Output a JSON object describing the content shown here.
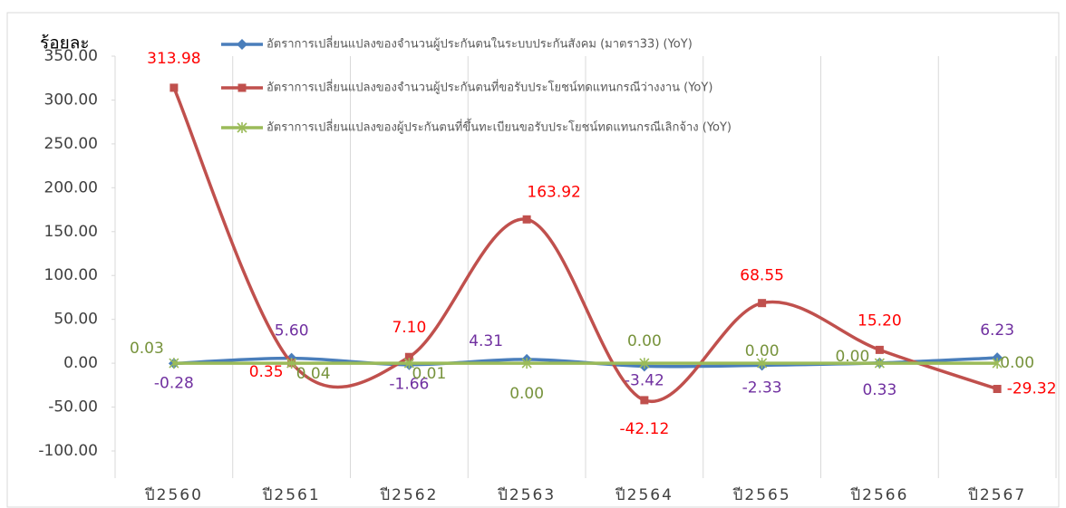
{
  "chart_data": {
    "type": "line",
    "y_label": "ร้อยละ",
    "categories": [
      "ปี2560",
      "ปี2561",
      "ปี2562",
      "ปี2563",
      "ปี2564",
      "ปี2565",
      "ปี2566",
      "ปี2567"
    ],
    "series": [
      {
        "name": "อัตราการเปลี่ยนแปลงของจำนวนผู้ประกันตนในระบบประกันสังคม (มาตรา33) (YoY)",
        "color": "#4a7ebb",
        "label_color": "#7030a0",
        "marker": "diamond",
        "values": [
          -0.28,
          5.6,
          -1.66,
          4.31,
          -3.42,
          -2.33,
          0.33,
          6.23
        ],
        "value_labels": [
          "-0.28",
          "5.60",
          "-1.66",
          "4.31",
          "-3.42",
          "-2.33",
          "0.33",
          "6.23"
        ]
      },
      {
        "name": "อัตราการเปลี่ยนแปลงของจำนวนผู้ประกันตนที่ขอรับประโยชน์ทดแทนกรณีว่างงาน (YoY)",
        "color": "#c0504d",
        "label_color": "#ff0000",
        "marker": "square",
        "values": [
          313.98,
          0.35,
          7.1,
          163.92,
          -42.12,
          68.55,
          15.2,
          -29.32
        ],
        "value_labels": [
          "313.98",
          "0.35",
          "7.10",
          "163.92",
          "-42.12",
          "68.55",
          "15.20",
          "-29.32"
        ]
      },
      {
        "name": "อัตราการเปลี่ยนแปลงของผู้ประกันตนที่ขึ้นทะเบียนขอรับประโยชน์ทดแทนกรณีเลิกจ้าง (YoY)",
        "color": "#9bbb59",
        "label_color": "#77933c",
        "marker": "star",
        "values": [
          0.03,
          0.04,
          0.01,
          0,
          0,
          0,
          0,
          0
        ],
        "value_labels": [
          "0.03",
          "0.04",
          "0.01",
          "0.00",
          "0.00",
          "0.00",
          "0.00",
          "0.00"
        ]
      }
    ],
    "ylim": [
      -100,
      350
    ],
    "yticks": [
      {
        "value": -100,
        "label": "-100.00"
      },
      {
        "value": -50,
        "label": "-50.00"
      },
      {
        "value": 0,
        "label": "0.00"
      },
      {
        "value": 50,
        "label": "50.00"
      },
      {
        "value": 100,
        "label": "100.00"
      },
      {
        "value": 150,
        "label": "150.00"
      },
      {
        "value": 200,
        "label": "200.00"
      },
      {
        "value": 250,
        "label": "250.00"
      },
      {
        "value": 300,
        "label": "300.00"
      },
      {
        "value": 350,
        "label": "350.00"
      }
    ],
    "smooth": true
  }
}
